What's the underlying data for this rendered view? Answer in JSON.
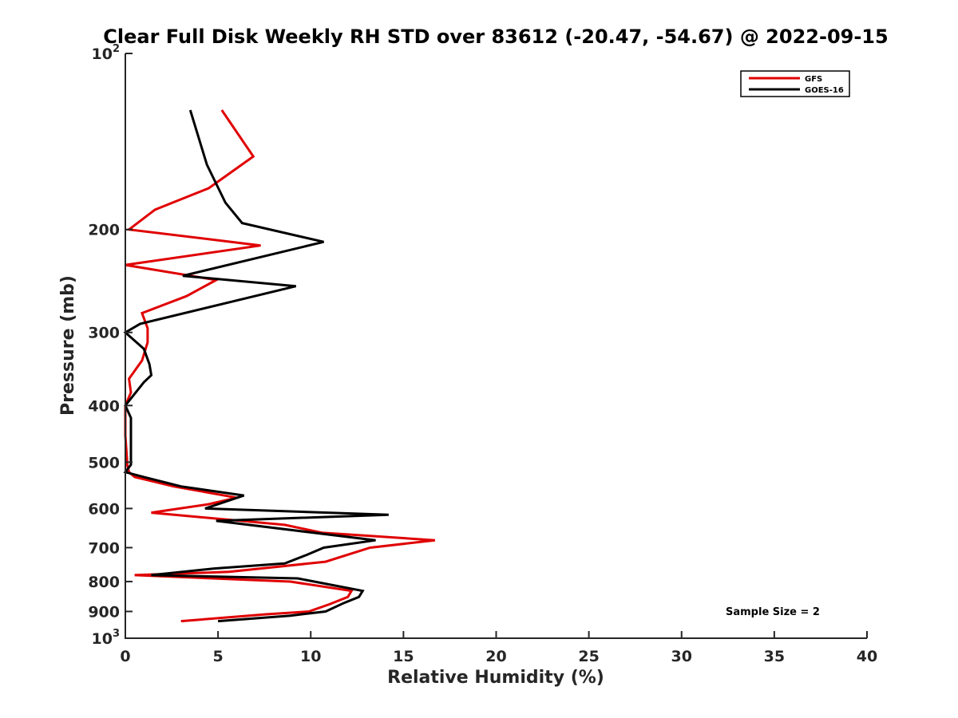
{
  "chart_data": {
    "type": "line",
    "title": "Clear Full Disk Weekly RH STD over 83612 (-20.47, -54.67) @ 2022-09-15",
    "xlabel": "Relative Humidity (%)",
    "ylabel": "Pressure (mb)",
    "xlim": [
      0,
      40
    ],
    "ylim": [
      100,
      1000
    ],
    "yscale": "log",
    "y_reversed": true,
    "grid": false,
    "legend_position": "top-right",
    "x_ticks": [
      0,
      5,
      10,
      15,
      20,
      25,
      30,
      35,
      40
    ],
    "x_tick_labels": [
      "0",
      "5",
      "10",
      "15",
      "20",
      "25",
      "30",
      "35",
      "40"
    ],
    "y_ticks": [
      100,
      200,
      300,
      400,
      500,
      600,
      700,
      800,
      900,
      1000
    ],
    "y_tick_labels": [
      {
        "base": "10",
        "exp": "2"
      },
      {
        "base": "200"
      },
      {
        "base": "300"
      },
      {
        "base": "400"
      },
      {
        "base": "500"
      },
      {
        "base": "600"
      },
      {
        "base": "700"
      },
      {
        "base": "800"
      },
      {
        "base": "900"
      },
      {
        "base": "10",
        "exp": "3"
      }
    ],
    "annotation": "Sample Size = 2",
    "series": [
      {
        "name": "GFS",
        "color": "#e00000",
        "x": [
          5.2,
          6.9,
          4.5,
          1.6,
          0.2,
          7.3,
          0.0,
          4.9,
          3.3,
          0.9,
          1.2,
          1.2,
          0.9,
          0.2,
          0.3,
          0.0,
          0.0,
          0.1,
          0.1,
          0.2,
          0.5,
          2.6,
          6.0,
          4.5,
          1.4,
          8.6,
          10.6,
          16.7,
          13.2,
          10.8,
          5.6,
          0.5,
          8.9,
          12.2,
          12.0,
          11.0,
          9.9,
          7.6,
          3.0
        ],
        "y": [
          125,
          150,
          170,
          185,
          200,
          213,
          230,
          244,
          260,
          278,
          295,
          312,
          335,
          360,
          380,
          400,
          450,
          500,
          505,
          520,
          530,
          550,
          575,
          590,
          610,
          640,
          660,
          680,
          700,
          740,
          770,
          780,
          800,
          830,
          850,
          875,
          900,
          910,
          935
        ]
      },
      {
        "name": "GOES-16",
        "color": "#000000",
        "x": [
          3.5,
          4.4,
          5.4,
          6.3,
          10.7,
          3.1,
          9.2,
          0.8,
          0.0,
          1.0,
          1.3,
          1.4,
          1.0,
          0.0,
          0.3,
          0.3,
          0.3,
          0.0,
          1.0,
          3.0,
          6.4,
          4.3,
          14.2,
          4.9,
          13.5,
          10.7,
          9.8,
          8.6,
          4.8,
          1.4,
          9.3,
          12.8,
          12.6,
          11.8,
          10.8,
          8.9,
          5.0
        ],
        "y": [
          125,
          155,
          180,
          195,
          210,
          240,
          250,
          290,
          300,
          320,
          340,
          355,
          365,
          400,
          420,
          500,
          505,
          520,
          530,
          550,
          570,
          600,
          615,
          630,
          680,
          700,
          720,
          745,
          760,
          780,
          790,
          830,
          850,
          870,
          900,
          915,
          935
        ]
      }
    ]
  }
}
